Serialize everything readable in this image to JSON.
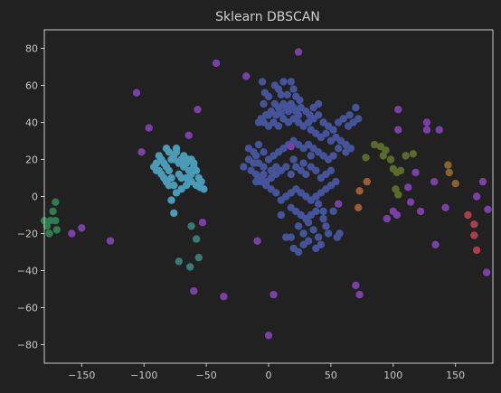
{
  "chart_data": {
    "type": "scatter",
    "title": "Sklearn DBSCAN",
    "xlabel": "",
    "ylabel": "",
    "xlim": [
      -180,
      180
    ],
    "ylim": [
      -90,
      90
    ],
    "xticks": [
      -150,
      -100,
      -50,
      0,
      50,
      100,
      150
    ],
    "yticks": [
      -80,
      -60,
      -40,
      -20,
      0,
      20,
      40,
      60,
      80
    ],
    "grid": false,
    "legend": "none",
    "colors": {
      "background": "#212121",
      "axes": "#cccccc",
      "noise": "#7b40a8",
      "cluster_blue": "#45549a",
      "cluster_cyan": "#4a9bb7",
      "cluster_teal": "#3a7a72",
      "cluster_green": "#2e7d4f",
      "cluster_olive": "#5a6a2c",
      "cluster_orange": "#a05a38",
      "cluster_red": "#a83f4a",
      "cluster_brown": "#8a6230"
    },
    "series": [
      {
        "color_key": "cluster_blue",
        "points": [
          [
            -5,
            62
          ],
          [
            5,
            60
          ],
          [
            12,
            62
          ],
          [
            8,
            58
          ],
          [
            18,
            62
          ],
          [
            20,
            58
          ],
          [
            -3,
            56
          ],
          [
            0,
            54
          ],
          [
            10,
            55
          ],
          [
            15,
            55
          ],
          [
            22,
            54
          ],
          [
            25,
            52
          ],
          [
            5,
            50
          ],
          [
            8,
            48
          ],
          [
            12,
            50
          ],
          [
            14,
            48
          ],
          [
            16,
            46
          ],
          [
            18,
            50
          ],
          [
            20,
            48
          ],
          [
            22,
            46
          ],
          [
            24,
            44
          ],
          [
            26,
            48
          ],
          [
            10,
            45
          ],
          [
            6,
            44
          ],
          [
            2,
            46
          ],
          [
            -2,
            44
          ],
          [
            -6,
            42
          ],
          [
            -8,
            40
          ],
          [
            -4,
            40
          ],
          [
            0,
            38
          ],
          [
            4,
            40
          ],
          [
            8,
            38
          ],
          [
            12,
            42
          ],
          [
            16,
            40
          ],
          [
            20,
            42
          ],
          [
            24,
            40
          ],
          [
            28,
            38
          ],
          [
            32,
            40
          ],
          [
            36,
            42
          ],
          [
            40,
            44
          ],
          [
            44,
            40
          ],
          [
            48,
            38
          ],
          [
            52,
            36
          ],
          [
            56,
            40
          ],
          [
            60,
            42
          ],
          [
            64,
            38
          ],
          [
            68,
            40
          ],
          [
            72,
            42
          ],
          [
            70,
            48
          ],
          [
            65,
            44
          ],
          [
            30,
            46
          ],
          [
            33,
            44
          ],
          [
            34,
            36
          ],
          [
            38,
            34
          ],
          [
            42,
            32
          ],
          [
            46,
            34
          ],
          [
            50,
            30
          ],
          [
            54,
            32
          ],
          [
            58,
            30
          ],
          [
            62,
            28
          ],
          [
            66,
            26
          ],
          [
            62,
            24
          ],
          [
            56,
            26
          ],
          [
            52,
            22
          ],
          [
            48,
            20
          ],
          [
            44,
            22
          ],
          [
            40,
            24
          ],
          [
            36,
            26
          ],
          [
            32,
            28
          ],
          [
            28,
            26
          ],
          [
            24,
            28
          ],
          [
            20,
            30
          ],
          [
            16,
            28
          ],
          [
            12,
            26
          ],
          [
            8,
            24
          ],
          [
            4,
            22
          ],
          [
            0,
            20
          ],
          [
            -4,
            24
          ],
          [
            -8,
            18
          ],
          [
            -10,
            22
          ],
          [
            -12,
            18
          ],
          [
            -16,
            20
          ],
          [
            -20,
            16
          ],
          [
            -14,
            14
          ],
          [
            -10,
            12
          ],
          [
            -6,
            10
          ],
          [
            -2,
            8
          ],
          [
            2,
            10
          ],
          [
            6,
            12
          ],
          [
            10,
            14
          ],
          [
            14,
            16
          ],
          [
            18,
            12
          ],
          [
            22,
            16
          ],
          [
            26,
            14
          ],
          [
            30,
            12
          ],
          [
            34,
            16
          ],
          [
            38,
            14
          ],
          [
            42,
            10
          ],
          [
            46,
            12
          ],
          [
            50,
            14
          ],
          [
            54,
            8
          ],
          [
            50,
            6
          ],
          [
            46,
            4
          ],
          [
            42,
            2
          ],
          [
            38,
            0
          ],
          [
            34,
            -2
          ],
          [
            30,
            0
          ],
          [
            26,
            2
          ],
          [
            22,
            4
          ],
          [
            18,
            2
          ],
          [
            14,
            0
          ],
          [
            10,
            -2
          ],
          [
            6,
            2
          ],
          [
            2,
            4
          ],
          [
            -2,
            6
          ],
          [
            -6,
            8
          ],
          [
            -10,
            8
          ],
          [
            -8,
            10
          ],
          [
            -4,
            12
          ],
          [
            20,
            20
          ],
          [
            28,
            18
          ],
          [
            34,
            22
          ],
          [
            40,
            -4
          ],
          [
            44,
            -8
          ],
          [
            38,
            -8
          ],
          [
            34,
            -10
          ],
          [
            30,
            -12
          ],
          [
            26,
            -10
          ],
          [
            22,
            -8
          ],
          [
            18,
            -6
          ],
          [
            24,
            -16
          ],
          [
            28,
            -20
          ],
          [
            32,
            -14
          ],
          [
            36,
            -18
          ],
          [
            40,
            -22
          ],
          [
            44,
            -12
          ],
          [
            48,
            -20
          ],
          [
            32,
            -24
          ],
          [
            28,
            -26
          ],
          [
            24,
            -30
          ],
          [
            20,
            -28
          ],
          [
            18,
            -22
          ],
          [
            14,
            -22
          ],
          [
            38,
            -28
          ],
          [
            42,
            -26
          ],
          [
            46,
            -16
          ],
          [
            52,
            -8
          ],
          [
            55,
            -22
          ],
          [
            57,
            -20
          ],
          [
            10,
            -10
          ],
          [
            -8,
            28
          ],
          [
            -12,
            24
          ],
          [
            -16,
            26
          ],
          [
            -4,
            16
          ],
          [
            2,
            14
          ],
          [
            6,
            16
          ],
          [
            40,
            50
          ],
          [
            36,
            48
          ],
          [
            -4,
            50
          ],
          [
            0,
            44
          ]
        ]
      },
      {
        "color_key": "cluster_cyan",
        "points": [
          [
            -92,
            16
          ],
          [
            -90,
            18
          ],
          [
            -88,
            14
          ],
          [
            -86,
            12
          ],
          [
            -84,
            10
          ],
          [
            -82,
            8
          ],
          [
            -80,
            6
          ],
          [
            -78,
            20
          ],
          [
            -76,
            22
          ],
          [
            -74,
            24
          ],
          [
            -72,
            18
          ],
          [
            -70,
            20
          ],
          [
            -68,
            16
          ],
          [
            -66,
            18
          ],
          [
            -64,
            14
          ],
          [
            -62,
            12
          ],
          [
            -60,
            16
          ],
          [
            -58,
            14
          ],
          [
            -56,
            10
          ],
          [
            -54,
            8
          ],
          [
            -52,
            4
          ],
          [
            -55,
            5
          ],
          [
            -58,
            6
          ],
          [
            -62,
            8
          ],
          [
            -66,
            6
          ],
          [
            -70,
            4
          ],
          [
            -74,
            2
          ],
          [
            -76,
            6
          ],
          [
            -78,
            10
          ],
          [
            -80,
            14
          ],
          [
            -82,
            16
          ],
          [
            -84,
            18
          ],
          [
            -86,
            20
          ],
          [
            -88,
            22
          ],
          [
            -90,
            14
          ],
          [
            -74,
            26
          ],
          [
            -76,
            20
          ],
          [
            -72,
            12
          ],
          [
            -68,
            22
          ],
          [
            -64,
            20
          ],
          [
            -62,
            20
          ],
          [
            -60,
            18
          ],
          [
            -80,
            24
          ],
          [
            -78,
            -2
          ],
          [
            -76,
            -9
          ],
          [
            -82,
            26
          ],
          [
            -70,
            10
          ],
          [
            -66,
            10
          ]
        ]
      },
      {
        "color_key": "cluster_teal",
        "points": [
          [
            -62,
            -16
          ],
          [
            -58,
            -23
          ],
          [
            -56,
            -33
          ],
          [
            -72,
            -35
          ],
          [
            -63,
            -38
          ]
        ]
      },
      {
        "color_key": "cluster_green",
        "points": [
          [
            -171,
            -3
          ],
          [
            -173,
            -8
          ],
          [
            -175,
            -13
          ],
          [
            -171,
            -13
          ],
          [
            -170,
            -18
          ],
          [
            -176,
            -20
          ],
          [
            -178,
            -16
          ],
          [
            -180,
            -13
          ]
        ]
      },
      {
        "color_key": "cluster_olive",
        "points": [
          [
            85,
            28
          ],
          [
            90,
            27
          ],
          [
            92,
            22
          ],
          [
            94,
            25
          ],
          [
            98,
            20
          ],
          [
            100,
            15
          ],
          [
            103,
            13
          ],
          [
            106,
            14
          ],
          [
            102,
            4
          ],
          [
            104,
            1
          ],
          [
            110,
            22
          ],
          [
            116,
            23
          ],
          [
            78,
            21
          ]
        ]
      },
      {
        "color_key": "cluster_orange",
        "points": [
          [
            73,
            3
          ],
          [
            79,
            8
          ],
          [
            72,
            -6
          ]
        ]
      },
      {
        "color_key": "cluster_brown",
        "points": [
          [
            144,
            17
          ],
          [
            145,
            13
          ],
          [
            150,
            7
          ]
        ]
      },
      {
        "color_key": "cluster_red",
        "points": [
          [
            160,
            -10
          ],
          [
            165,
            -15
          ],
          [
            165,
            -21
          ],
          [
            167,
            -29
          ]
        ]
      },
      {
        "color_key": "noise",
        "points": [
          [
            24,
            78
          ],
          [
            -42,
            72
          ],
          [
            -18,
            65
          ],
          [
            -106,
            56
          ],
          [
            -57,
            47
          ],
          [
            -96,
            37
          ],
          [
            -64,
            33
          ],
          [
            -102,
            24
          ],
          [
            -53,
            -14
          ],
          [
            -150,
            -17
          ],
          [
            -158,
            -20
          ],
          [
            -127,
            -24
          ],
          [
            -60,
            -51
          ],
          [
            -36,
            -54
          ],
          [
            -9,
            -24
          ],
          [
            4,
            -53
          ],
          [
            0,
            -75
          ],
          [
            18,
            27
          ],
          [
            56,
            -4
          ],
          [
            70,
            -48
          ],
          [
            73,
            -53
          ],
          [
            95,
            -12
          ],
          [
            100,
            -8
          ],
          [
            103,
            -10
          ],
          [
            104,
            47
          ],
          [
            104,
            36
          ],
          [
            112,
            5
          ],
          [
            114,
            -3
          ],
          [
            118,
            13
          ],
          [
            122,
            -8
          ],
          [
            127,
            40
          ],
          [
            127,
            36
          ],
          [
            133,
            8
          ],
          [
            134,
            -26
          ],
          [
            137,
            36
          ],
          [
            142,
            -6
          ],
          [
            167,
            0
          ],
          [
            175,
            -41
          ],
          [
            176,
            -7
          ],
          [
            172,
            8
          ]
        ]
      }
    ]
  }
}
